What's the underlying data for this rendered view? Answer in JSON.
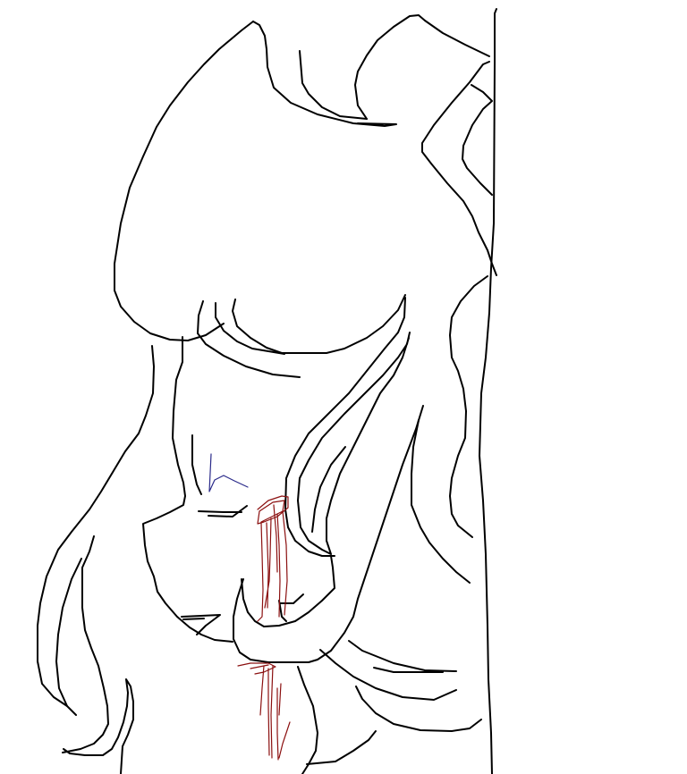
{
  "canvas": {
    "background": "#ffffff",
    "colors": {
      "line": "#000000",
      "accent_blue": "#2a2a8a",
      "accent_red": "#8b1010"
    }
  }
}
